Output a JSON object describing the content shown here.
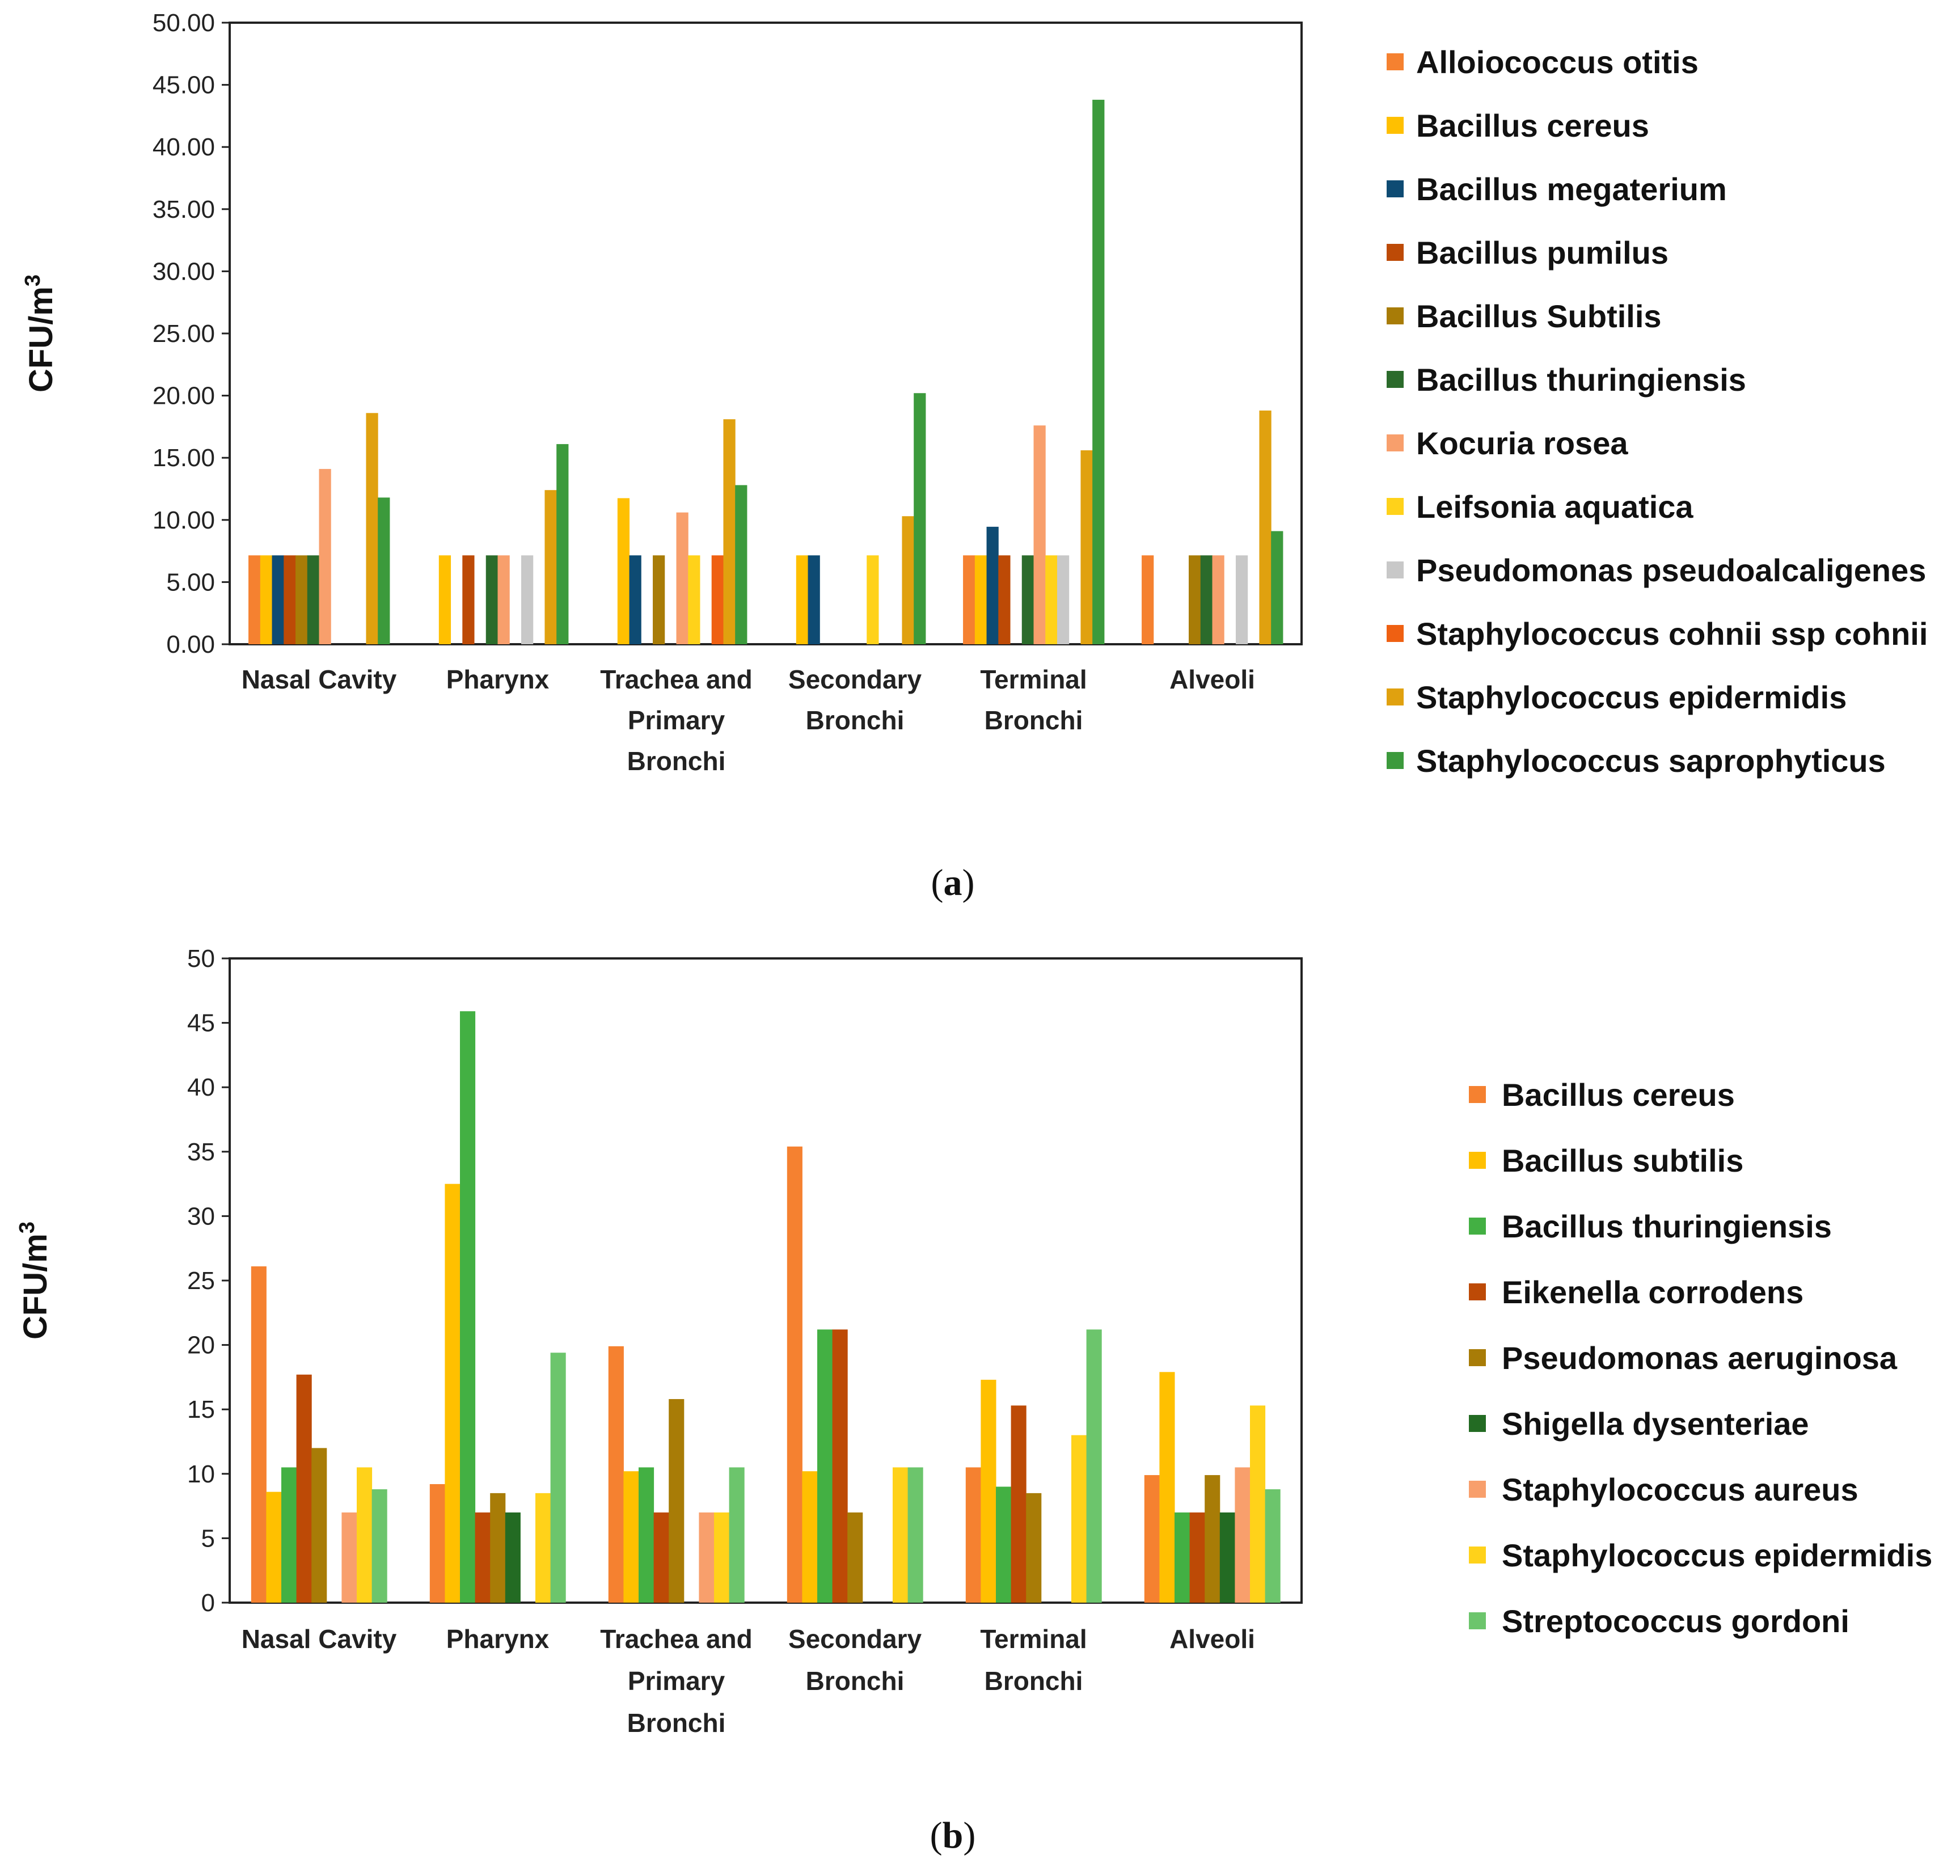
{
  "chart_data": [
    {
      "type": "bar",
      "panel": "a",
      "caption": {
        "open": "(",
        "letter": "a",
        "close": ")"
      },
      "ylabel": "CFU/m",
      "ylabel_sup": "3",
      "ylim": [
        0,
        50
      ],
      "yticks": [
        "0.00",
        "5.00",
        "10.00",
        "15.00",
        "20.00",
        "25.00",
        "30.00",
        "35.00",
        "40.00",
        "45.00",
        "50.00"
      ],
      "categories": [
        [
          "Nasal Cavity"
        ],
        [
          "Pharynx"
        ],
        [
          "Trachea and",
          "Primary",
          "Bronchi"
        ],
        [
          "Secondary",
          "Bronchi"
        ],
        [
          "Terminal",
          "Bronchi"
        ],
        [
          "Alveoli"
        ]
      ],
      "series": [
        {
          "name": "Alloiococcus otitis",
          "color": "#F58130",
          "values": [
            7.15,
            0,
            0,
            0,
            7.15,
            7.15
          ]
        },
        {
          "name": "Bacillus cereus",
          "color": "#FFC000",
          "values": [
            7.15,
            7.15,
            11.75,
            7.15,
            7.15,
            0
          ]
        },
        {
          "name": "Bacillus megaterium",
          "color": "#0E4B73",
          "values": [
            7.15,
            0,
            7.15,
            7.15,
            9.45,
            0
          ]
        },
        {
          "name": "Bacillus pumilus",
          "color": "#BD4A06",
          "values": [
            7.15,
            7.15,
            0,
            0,
            7.15,
            0
          ]
        },
        {
          "name": "Bacillus Subtilis",
          "color": "#A87C07",
          "values": [
            7.15,
            0,
            7.15,
            0,
            0,
            7.15
          ]
        },
        {
          "name": "Bacillus thuringiensis",
          "color": "#2B6B2B",
          "values": [
            7.15,
            7.15,
            0,
            0,
            7.15,
            7.15
          ]
        },
        {
          "name": "Kocuria rosea",
          "color": "#F89F6C",
          "values": [
            14.1,
            7.15,
            10.6,
            0,
            17.6,
            7.15
          ]
        },
        {
          "name": "Leifsonia aquatica",
          "color": "#FFD21A",
          "values": [
            0,
            0,
            7.15,
            7.15,
            7.15,
            0
          ]
        },
        {
          "name": "Pseudomonas pseudoalcaligenes",
          "color": "#C8C8C8",
          "values": [
            0,
            7.15,
            0,
            0,
            7.15,
            7.15
          ]
        },
        {
          "name": "Staphylococcus cohnii ssp cohnii",
          "color": "#EF6012",
          "values": [
            0,
            0,
            7.15,
            0,
            0,
            0
          ]
        },
        {
          "name": "Staphylococcus epidermidis",
          "color": "#E0A10F",
          "values": [
            18.6,
            12.4,
            18.1,
            10.3,
            15.6,
            18.8
          ]
        },
        {
          "name": "Staphylococcus saprophyticus",
          "color": "#3C9A3C",
          "values": [
            11.8,
            16.1,
            12.8,
            20.2,
            43.8,
            9.1
          ]
        }
      ]
    },
    {
      "type": "bar",
      "panel": "b",
      "caption": {
        "open": "(",
        "letter": "b",
        "close": ")"
      },
      "ylabel": "CFU/m",
      "ylabel_sup": "3",
      "ylim": [
        0,
        50
      ],
      "yticks": [
        "0",
        "5",
        "10",
        "15",
        "20",
        "25",
        "30",
        "35",
        "40",
        "45",
        "50"
      ],
      "categories": [
        [
          "Nasal Cavity"
        ],
        [
          "Pharynx"
        ],
        [
          "Trachea and",
          "Primary",
          "Bronchi"
        ],
        [
          "Secondary",
          "Bronchi"
        ],
        [
          "Terminal",
          "Bronchi"
        ],
        [
          "Alveoli"
        ]
      ],
      "series": [
        {
          "name": "Bacillus cereus",
          "color": "#F58130",
          "values": [
            26.1,
            9.2,
            19.9,
            35.4,
            10.5,
            9.9
          ]
        },
        {
          "name": "Bacillus subtilis",
          "color": "#FFC000",
          "values": [
            8.6,
            32.5,
            10.2,
            10.2,
            17.3,
            17.9
          ]
        },
        {
          "name": "Bacillus thuringiensis",
          "color": "#43B043",
          "values": [
            10.5,
            45.9,
            10.5,
            21.2,
            9.0,
            7.0
          ]
        },
        {
          "name": "Eikenella corrodens",
          "color": "#BD4A06",
          "values": [
            17.7,
            7.0,
            7.0,
            21.2,
            15.3,
            7.0
          ]
        },
        {
          "name": "Pseudomonas aeruginosa",
          "color": "#A87C07",
          "values": [
            12.0,
            8.5,
            15.8,
            7.0,
            8.5,
            9.9
          ]
        },
        {
          "name": "Shigella dysenteriae",
          "color": "#236B23",
          "values": [
            0,
            7.0,
            0,
            0,
            0,
            7.0
          ]
        },
        {
          "name": "Staphylococcus aureus",
          "color": "#F89F6C",
          "values": [
            7.0,
            0,
            7.0,
            0,
            0,
            10.5
          ]
        },
        {
          "name": "Staphylococcus epidermidis",
          "color": "#FFD21A",
          "values": [
            10.5,
            8.5,
            7.0,
            10.5,
            13.0,
            15.3
          ]
        },
        {
          "name": "Streptococcus gordoni",
          "color": "#6CC56C",
          "values": [
            8.8,
            19.4,
            10.5,
            10.5,
            21.2,
            8.8
          ]
        }
      ]
    }
  ]
}
